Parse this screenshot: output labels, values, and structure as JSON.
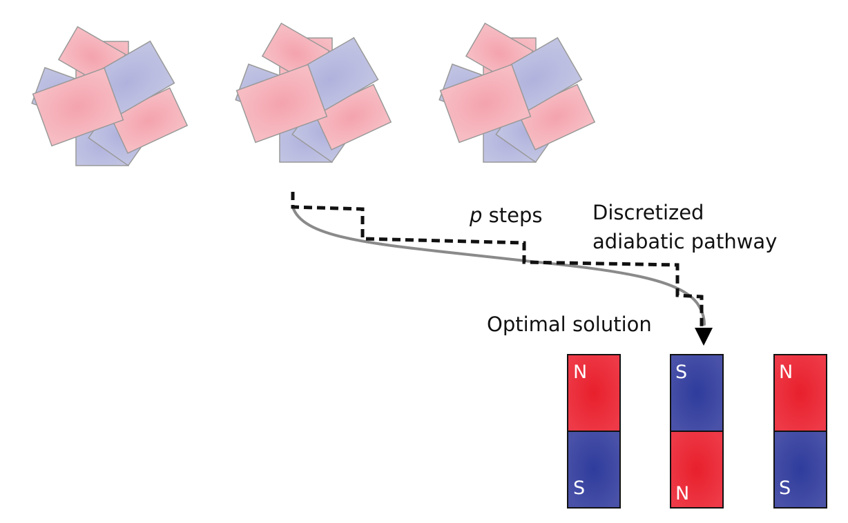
{
  "labels": {
    "p_var": "p",
    "steps": " steps",
    "pathway_line1": "Discretized",
    "pathway_line2": "adiabatic pathway",
    "optimal": "Optimal solution"
  },
  "magnets": [
    {
      "top_pole": "N",
      "bottom_pole": "S"
    },
    {
      "top_pole": "S",
      "bottom_pole": "N"
    },
    {
      "top_pole": "N",
      "bottom_pole": "S"
    }
  ],
  "colors": {
    "superposition_red": "#f6b3bb",
    "superposition_blue": "#bcbde0",
    "magnet_red": "#e8232e",
    "magnet_blue": "#3f4ba3",
    "path_gray": "#8a8a8a",
    "steps_black": "#111111"
  }
}
